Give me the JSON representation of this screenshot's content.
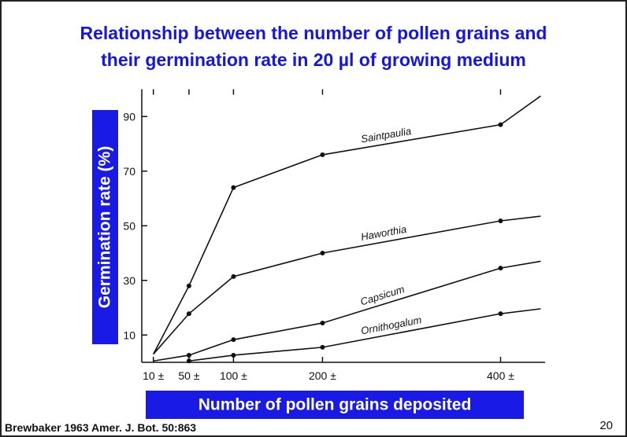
{
  "chart_data": {
    "type": "line",
    "title": [
      "Relationship between the number of pollen grains and",
      "their germination rate in 20 µl of growing medium"
    ],
    "x_label": "Number of pollen grains deposited",
    "y_label": "Germination rate (%)",
    "x": [
      10,
      50,
      100,
      200,
      400,
      445
    ],
    "series": [
      {
        "name": "Saintpaulia",
        "color": "#111111",
        "values": [
          3,
          28,
          64,
          76,
          87,
          97.5
        ]
      },
      {
        "name": "Haworthia",
        "color": "#111111",
        "values": [
          3,
          17.8,
          31.4,
          40,
          51.8,
          53.5
        ]
      },
      {
        "name": "Capsicum",
        "color": "#111111",
        "values": [
          0.5,
          2.6,
          8.3,
          14.4,
          34.5,
          37
        ]
      },
      {
        "name": "Ornithogalum",
        "color": "#111111",
        "values": [
          null,
          0.5,
          2.6,
          5.5,
          17.8,
          19.6
        ]
      }
    ],
    "xlim": [
      -3,
      450
    ],
    "ylim": [
      0,
      100
    ],
    "xticks": [
      {
        "value": 10,
        "label": "10 ±"
      },
      {
        "value": 50,
        "label": "50 ±"
      },
      {
        "value": 100,
        "label": "100 ±"
      },
      {
        "value": 200,
        "label": "200 ±"
      },
      {
        "value": 400,
        "label": "400 ±"
      }
    ],
    "yticks": [
      10,
      30,
      50,
      70,
      90
    ],
    "source": "Brewbaker 1963 Amer. J. Bot. 50:863",
    "page_number": "20"
  }
}
